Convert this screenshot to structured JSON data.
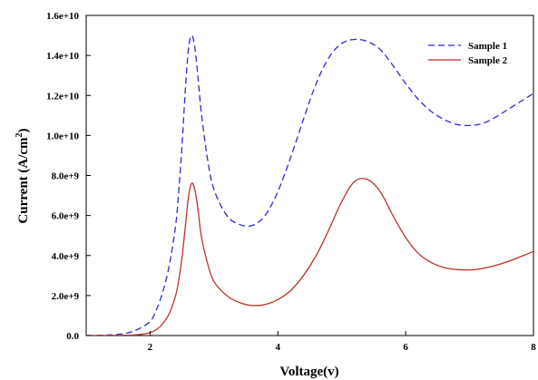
{
  "chart_data": {
    "type": "line",
    "xlabel": "Voltage(v)",
    "ylabel": "Current (A/cm",
    "ylabel_sup": "2",
    "ylabel_close": ")",
    "xlim": [
      1,
      8
    ],
    "ylim": [
      0,
      16000000000
    ],
    "grid": false,
    "legend_position": "top-right",
    "x_ticks": [
      {
        "value": 2,
        "label": "2"
      },
      {
        "value": 4,
        "label": "4"
      },
      {
        "value": 6,
        "label": "6"
      },
      {
        "value": 8,
        "label": "8"
      }
    ],
    "y_ticks": [
      {
        "value": 0,
        "label": "0.0"
      },
      {
        "value": 2000000000,
        "label": "2.0e+9"
      },
      {
        "value": 4000000000,
        "label": "4.0e+9"
      },
      {
        "value": 6000000000,
        "label": "6.0e+9"
      },
      {
        "value": 8000000000,
        "label": "8.0e+9"
      },
      {
        "value": 10000000000,
        "label": "1.0e+10"
      },
      {
        "value": 12000000000,
        "label": "1.2e+10"
      },
      {
        "value": 14000000000,
        "label": "1.4e+10"
      },
      {
        "value": 16000000000,
        "label": "1.6e+10"
      }
    ],
    "series": [
      {
        "name": "Sample 1",
        "color": "#2b2bd6",
        "dash": "dashed",
        "x": [
          1.0,
          1.3,
          1.6,
          1.8,
          2.0,
          2.1,
          2.2,
          2.3,
          2.4,
          2.45,
          2.5,
          2.55,
          2.6,
          2.65,
          2.7,
          2.75,
          2.8,
          2.9,
          3.0,
          3.2,
          3.4,
          3.6,
          3.8,
          4.0,
          4.2,
          4.4,
          4.6,
          4.8,
          5.0,
          5.2,
          5.4,
          5.6,
          5.8,
          6.0,
          6.2,
          6.4,
          6.6,
          6.8,
          7.0,
          7.2,
          7.4,
          7.6,
          7.8,
          8.0
        ],
        "y": [
          0.0,
          20000000.0,
          100000000.0,
          300000000.0,
          700000000.0,
          1300000000.0,
          2200000000.0,
          3500000000.0,
          5500000000.0,
          7300000000.0,
          9500000000.0,
          12200000000.0,
          14300000000.0,
          15000000000.0,
          14400000000.0,
          12900000000.0,
          11200000000.0,
          8800000000.0,
          7300000000.0,
          6000000000.0,
          5550000000.0,
          5500000000.0,
          6000000000.0,
          7200000000.0,
          8900000000.0,
          10800000000.0,
          12600000000.0,
          13900000000.0,
          14600000000.0,
          14800000000.0,
          14700000000.0,
          14300000000.0,
          13500000000.0,
          12600000000.0,
          11800000000.0,
          11200000000.0,
          10800000000.0,
          10550000000.0,
          10500000000.0,
          10600000000.0,
          10900000000.0,
          11300000000.0,
          11700000000.0,
          12100000000.0
        ]
      },
      {
        "name": "Sample 2",
        "color": "#c0302a",
        "dash": "solid",
        "x": [
          1.0,
          1.3,
          1.6,
          1.8,
          2.0,
          2.1,
          2.2,
          2.3,
          2.4,
          2.45,
          2.5,
          2.55,
          2.6,
          2.65,
          2.7,
          2.75,
          2.8,
          2.9,
          3.0,
          3.2,
          3.4,
          3.6,
          3.8,
          4.0,
          4.2,
          4.4,
          4.6,
          4.8,
          5.0,
          5.2,
          5.4,
          5.6,
          5.8,
          6.0,
          6.2,
          6.4,
          6.6,
          6.8,
          7.0,
          7.2,
          7.4,
          7.6,
          7.8,
          8.0
        ],
        "y": [
          0.0,
          5000000.0,
          15000000.0,
          40000000.0,
          150000000.0,
          300000000.0,
          600000000.0,
          1100000000.0,
          2000000000.0,
          2800000000.0,
          3900000000.0,
          5400000000.0,
          6900000000.0,
          7600000000.0,
          7300000000.0,
          6300000000.0,
          5000000000.0,
          3600000000.0,
          2700000000.0,
          2000000000.0,
          1650000000.0,
          1500000000.0,
          1550000000.0,
          1800000000.0,
          2250000000.0,
          3000000000.0,
          4000000000.0,
          5300000000.0,
          6700000000.0,
          7700000000.0,
          7800000000.0,
          7200000000.0,
          6000000000.0,
          4900000000.0,
          4100000000.0,
          3650000000.0,
          3400000000.0,
          3300000000.0,
          3280000000.0,
          3350000000.0,
          3500000000.0,
          3700000000.0,
          3950000000.0,
          4200000000.0
        ]
      }
    ]
  }
}
